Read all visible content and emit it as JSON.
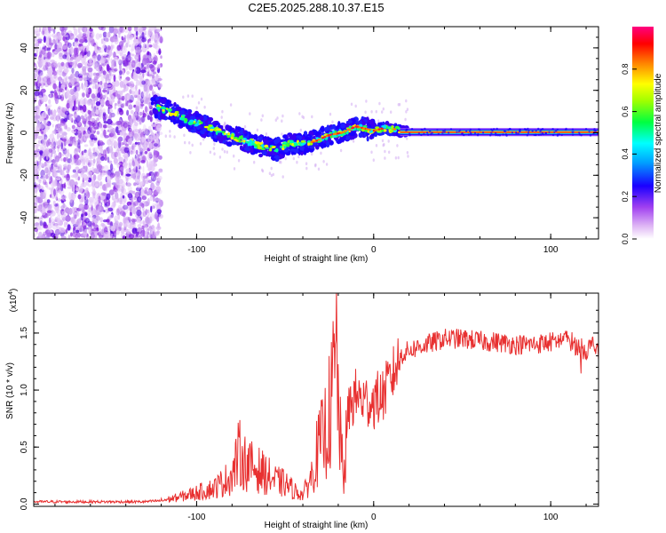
{
  "title": "C2E5.2025.288.10.37.E15",
  "chart_data": [
    {
      "type": "heatmap",
      "title": "C2E5.2025.288.10.37.E15",
      "xlabel": "Height of straight line (km)",
      "ylabel": "Frequency (Hz)",
      "xlim": [
        -192,
        127
      ],
      "ylim": [
        -50,
        50
      ],
      "xticks": [
        "-100",
        "0",
        "100"
      ],
      "xtick_values": [
        -100,
        0,
        100
      ],
      "yticks": [
        "-40",
        "-20",
        "0",
        "20",
        "40"
      ],
      "ytick_values": [
        -40,
        -20,
        0,
        20,
        40
      ],
      "ridge": {
        "x": [
          -125,
          -115,
          -105,
          -95,
          -85,
          -75,
          -65,
          -55,
          -48,
          -40,
          -33,
          -25,
          -18,
          -10,
          -5,
          0,
          5,
          10,
          15,
          30,
          60,
          90,
          127
        ],
        "y": [
          13,
          10,
          6,
          3,
          0,
          -3,
          -6,
          -8,
          -5,
          -5,
          -4,
          -1,
          0,
          3,
          2,
          1,
          2,
          2,
          1,
          1,
          0,
          0,
          0
        ]
      },
      "colorbar": {
        "label": "Normalized spectral amplitude",
        "ticks": [
          "0.0",
          "0.2",
          "0.4",
          "0.6",
          "0.8"
        ],
        "tick_values": [
          0.0,
          0.2,
          0.4,
          0.6,
          0.8
        ],
        "range": [
          0,
          1
        ],
        "colors": [
          "#e0b8f5",
          "#8a2be2",
          "#1a00ff",
          "#00a0ff",
          "#00ffff",
          "#00ff40",
          "#a0ff00",
          "#ffff00",
          "#ff8000",
          "#ff0000",
          "#ff0080"
        ]
      }
    },
    {
      "type": "line",
      "xlabel": "Height of straight line (km)",
      "ylabel": "SNR (10 * v/v)",
      "yscale_label": "(x10",
      "yscale_exp": "4",
      "yscale_close": ")",
      "xlim": [
        -192,
        127
      ],
      "ylim": [
        -0.02,
        1.85
      ],
      "xticks": [
        "-100",
        "0",
        "100"
      ],
      "xtick_values": [
        -100,
        0,
        100
      ],
      "yticks": [
        "0.0",
        "0.5",
        "1.0",
        "1.5"
      ],
      "ytick_values": [
        0.0,
        0.5,
        1.0,
        1.5
      ],
      "series": [
        {
          "name": "SNR",
          "color": "#e83030",
          "x": [
            -192,
            -160,
            -130,
            -120,
            -110,
            -100,
            -90,
            -80,
            -76,
            -72,
            -65,
            -60,
            -55,
            -50,
            -45,
            -40,
            -35,
            -32,
            -28,
            -24,
            -21,
            -19,
            -17,
            -14,
            -10,
            -5,
            0,
            5,
            10,
            15,
            20,
            30,
            40,
            50,
            60,
            70,
            80,
            90,
            100,
            110,
            115,
            120,
            124,
            127
          ],
          "y": [
            0.02,
            0.02,
            0.02,
            0.03,
            0.06,
            0.1,
            0.14,
            0.25,
            0.45,
            0.35,
            0.3,
            0.25,
            0.2,
            0.18,
            0.12,
            0.08,
            0.25,
            0.45,
            0.6,
            0.85,
            1.3,
            0.6,
            0.2,
            0.85,
            0.95,
            0.9,
            0.9,
            0.95,
            1.1,
            1.3,
            1.35,
            1.4,
            1.45,
            1.45,
            1.43,
            1.42,
            1.4,
            1.4,
            1.42,
            1.45,
            1.38,
            1.35,
            1.4,
            1.3
          ]
        }
      ]
    }
  ]
}
